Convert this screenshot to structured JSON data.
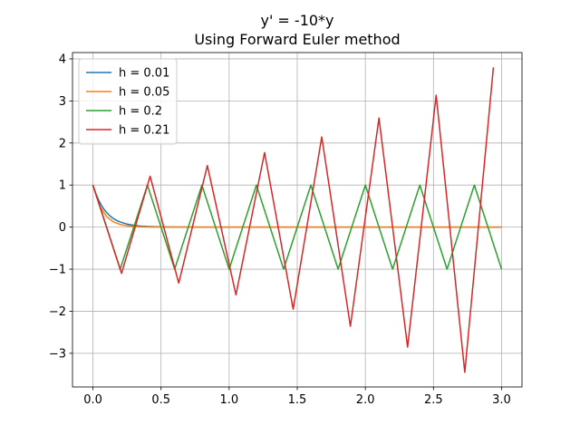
{
  "chart_data": {
    "type": "line",
    "title": "y' = -10*y",
    "subtitle": "Using Forward Euler method",
    "xlabel": "",
    "ylabel": "",
    "xlim": [
      -0.15,
      3.15
    ],
    "ylim": [
      -3.8,
      4.15
    ],
    "xticks": [
      0.0,
      0.5,
      1.0,
      1.5,
      2.0,
      2.5,
      3.0
    ],
    "xtick_labels": [
      "0.0",
      "0.5",
      "1.0",
      "1.5",
      "2.0",
      "2.5",
      "3.0"
    ],
    "yticks": [
      -3,
      -2,
      -1,
      0,
      1,
      2,
      3,
      4
    ],
    "ytick_labels": [
      "−3",
      "−2",
      "−1",
      "0",
      "1",
      "2",
      "3",
      "4"
    ],
    "grid": true,
    "legend_position": "upper-left",
    "series": [
      {
        "name": "h = 0.01",
        "color": "#1f77b4",
        "h": 0.01,
        "x": [
          0,
          0.02,
          0.04,
          0.06,
          0.08,
          0.1,
          0.12,
          0.14,
          0.16,
          0.18,
          0.2,
          0.25,
          0.3,
          0.35,
          0.4,
          0.5,
          0.6,
          0.8,
          1.0,
          1.5,
          2.0,
          2.5,
          3.0
        ],
        "y": [
          1.0,
          0.81,
          0.656,
          0.531,
          0.43,
          0.349,
          0.282,
          0.229,
          0.185,
          0.15,
          0.122,
          0.072,
          0.042,
          0.025,
          0.015,
          0.005,
          0.002,
          0.0,
          0.0,
          0.0,
          0.0,
          0.0,
          0.0
        ]
      },
      {
        "name": "h = 0.05",
        "color": "#ff7f0e",
        "h": 0.05,
        "x": [
          0,
          0.05,
          0.1,
          0.15,
          0.2,
          0.25,
          0.3,
          0.35,
          0.4,
          0.5,
          0.6,
          0.8,
          1.0,
          1.5,
          2.0,
          2.5,
          3.0
        ],
        "y": [
          1.0,
          0.5,
          0.25,
          0.125,
          0.0625,
          0.031,
          0.016,
          0.008,
          0.004,
          0.001,
          0.0,
          0.0,
          0.0,
          0.0,
          0.0,
          0.0,
          0.0
        ]
      },
      {
        "name": "h = 0.2",
        "color": "#2ca02c",
        "h": 0.2,
        "x": [
          0.0,
          0.2,
          0.4,
          0.6,
          0.8,
          1.0,
          1.2,
          1.4,
          1.6,
          1.8,
          2.0,
          2.2,
          2.4,
          2.6,
          2.8,
          3.0
        ],
        "y": [
          1,
          -1,
          1,
          -1,
          1,
          -1,
          1,
          -1,
          1,
          -1,
          1,
          -1,
          1,
          -1,
          1,
          -1
        ]
      },
      {
        "name": "h = 0.21",
        "color": "#d62728",
        "h": 0.21,
        "x": [
          0.0,
          0.21,
          0.42,
          0.63,
          0.84,
          1.05,
          1.26,
          1.47,
          1.68,
          1.89,
          2.1,
          2.31,
          2.52,
          2.73,
          2.94
        ],
        "y": [
          1.0,
          -1.1,
          1.21,
          -1.331,
          1.464,
          -1.611,
          1.772,
          -1.949,
          2.144,
          -2.358,
          2.594,
          -2.853,
          3.138,
          -3.452,
          3.797
        ]
      }
    ]
  }
}
